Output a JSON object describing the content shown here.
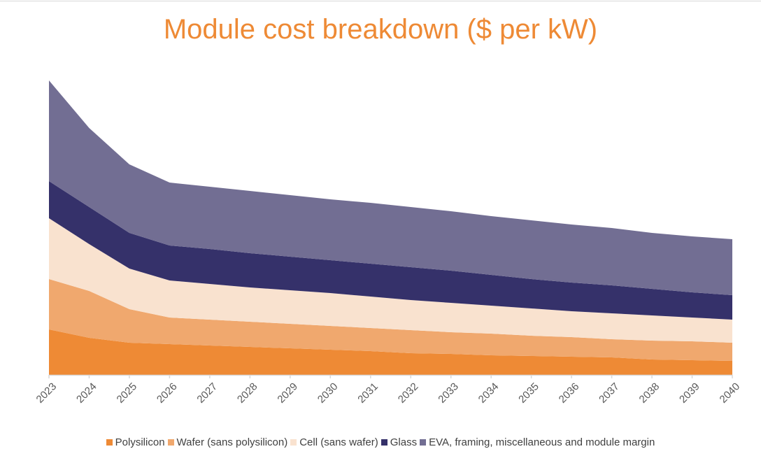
{
  "chart_data": {
    "type": "area",
    "stacked": true,
    "title": "Module cost breakdown ($ per kW)",
    "xlabel": "",
    "ylabel": "",
    "y_axis_shown": false,
    "ylim": [
      0,
      220
    ],
    "grid": false,
    "legend_placement": "bottom",
    "categories": [
      "2023",
      "2024",
      "2025",
      "2026",
      "2027",
      "2028",
      "2029",
      "2030",
      "2031",
      "2032",
      "2033",
      "2034",
      "2035",
      "2036",
      "2037",
      "2038",
      "2039",
      "2040"
    ],
    "series": [
      {
        "name": "Polysilicon",
        "color": "#EE8A35",
        "values": [
          32.5,
          26.5,
          23,
          22,
          21,
          20,
          19,
          18,
          17,
          15.5,
          15,
          14,
          13.5,
          13,
          12.5,
          11,
          10.5,
          10
        ]
      },
      {
        "name": "Wafer (sans polysilicon)",
        "color": "#F0A86E",
        "values": [
          36,
          33.5,
          24,
          19,
          18.5,
          18,
          17.5,
          17,
          16.5,
          16.5,
          15.5,
          15.5,
          14.5,
          14,
          13,
          13.5,
          13.5,
          13
        ]
      },
      {
        "name": "Cell (sans wafer)",
        "color": "#F9E2CF",
        "values": [
          43.5,
          33.5,
          29,
          26.5,
          25.5,
          24.5,
          24,
          23.5,
          22.5,
          21.5,
          21,
          20,
          19.5,
          18.5,
          18.5,
          18,
          17,
          16.5
        ]
      },
      {
        "name": "Glass",
        "color": "#35316A",
        "values": [
          26.5,
          26.5,
          25.5,
          25,
          25,
          24.5,
          24,
          23.5,
          23.5,
          23.5,
          23,
          22,
          21,
          20.5,
          20,
          19,
          18,
          17.5
        ]
      },
      {
        "name": "EVA, framing, miscellaneous and module margin",
        "color": "#726E93",
        "values": [
          72,
          56.5,
          49,
          45,
          44.5,
          44.5,
          44,
          43.5,
          43.5,
          43,
          42.5,
          42,
          42,
          41.5,
          41,
          40,
          40,
          40
        ]
      }
    ]
  }
}
